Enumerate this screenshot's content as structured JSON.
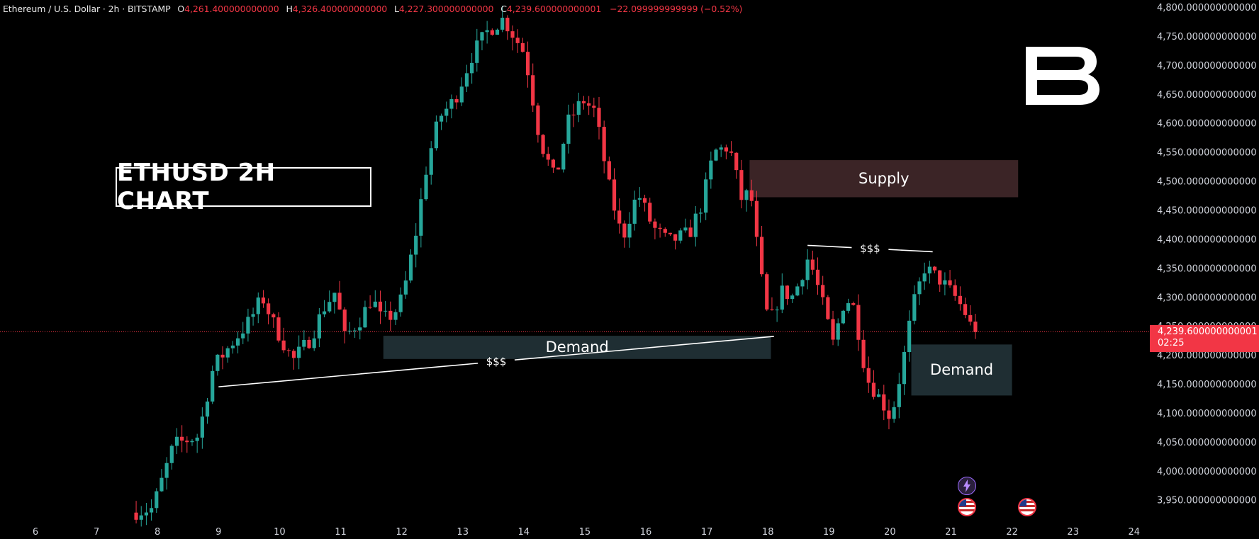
{
  "header": {
    "symbol": "Ethereum / U.S. Dollar · 2h · BITSTAMP",
    "open_label": "O",
    "open": "4,261.400000000000",
    "high_label": "H",
    "high": "4,326.400000000000",
    "low_label": "L",
    "low": "4,227.300000000000",
    "close_label": "C",
    "close": "4,239.600000000001",
    "change": "−22.099999999999 (−0.52%)"
  },
  "chart_title": "ETHUSD 2H CHART",
  "annotations": {
    "supply": "Supply",
    "demand_left": "Demand",
    "demand_right": "Demand",
    "liquidity_low": "$$$",
    "liquidity_high": "$$$"
  },
  "price_label": {
    "price": "4,239.600000000001",
    "countdown": "02:25"
  },
  "colors": {
    "up": "#26a69a",
    "down": "#f23645",
    "background": "#000000",
    "supply_zone": "#3b2426",
    "demand_zone": "#1f2e33"
  },
  "icons": [
    "flash-event-icon",
    "us-flag-icon",
    "us-flag-icon"
  ],
  "chart_data": {
    "type": "candlestick",
    "title": "ETHUSD 2H CHART",
    "ylim": [
      3910,
      4800
    ],
    "y_ticks": [
      "4,800.000000000000",
      "4,750.000000000000",
      "4,700.000000000000",
      "4,650.000000000000",
      "4,600.000000000000",
      "4,550.000000000000",
      "4,500.000000000000",
      "4,450.000000000000",
      "4,400.000000000000",
      "4,350.000000000000",
      "4,300.000000000000",
      "4,250.000000000000",
      "4,200.000000000000",
      "4,150.000000000000",
      "4,100.000000000000",
      "4,050.000000000000",
      "4,000.000000000000",
      "3,950.000000000000"
    ],
    "y_tick_values": [
      4800,
      4750,
      4700,
      4650,
      4600,
      4550,
      4500,
      4450,
      4400,
      4350,
      4300,
      4250,
      4200,
      4150,
      4100,
      4050,
      4000,
      3950
    ],
    "x_ticks": [
      "6",
      "7",
      "8",
      "9",
      "10",
      "11",
      "12",
      "13",
      "14",
      "15",
      "16",
      "17",
      "18",
      "19",
      "20",
      "21",
      "22",
      "23",
      "24"
    ],
    "x_range_days": [
      6,
      24
    ],
    "last_price": 4239.6,
    "zones": [
      {
        "name": "Supply",
        "day_start": 17.7,
        "day_end": 22.1,
        "price_low": 4472,
        "price_high": 4536
      },
      {
        "name": "Demand",
        "day_start": 11.7,
        "day_end": 18.05,
        "price_low": 4193,
        "price_high": 4233
      },
      {
        "name": "Demand",
        "day_start": 20.35,
        "day_end": 22.0,
        "price_low": 4130,
        "price_high": 4218
      }
    ],
    "lines": [
      {
        "label": "$$$",
        "from": [
          9.0,
          4145
        ],
        "to": [
          18.1,
          4232
        ]
      },
      {
        "label": "$$$",
        "from": [
          18.65,
          4389
        ],
        "to": [
          20.7,
          4378
        ]
      }
    ],
    "anchors": [
      [
        7.65,
        3928
      ],
      [
        8.0,
        3935
      ],
      [
        8.35,
        4045
      ],
      [
        8.75,
        4060
      ],
      [
        9.0,
        4180
      ],
      [
        9.3,
        4220
      ],
      [
        9.6,
        4260
      ],
      [
        9.8,
        4300
      ],
      [
        10.0,
        4250
      ],
      [
        10.3,
        4190
      ],
      [
        10.6,
        4230
      ],
      [
        10.8,
        4280
      ],
      [
        11.0,
        4310
      ],
      [
        11.15,
        4230
      ],
      [
        11.4,
        4260
      ],
      [
        11.6,
        4300
      ],
      [
        11.75,
        4260
      ],
      [
        11.95,
        4270
      ],
      [
        12.1,
        4300
      ],
      [
        12.3,
        4400
      ],
      [
        12.5,
        4530
      ],
      [
        12.7,
        4610
      ],
      [
        12.95,
        4640
      ],
      [
        13.25,
        4720
      ],
      [
        13.5,
        4760
      ],
      [
        13.75,
        4780
      ],
      [
        14.1,
        4720
      ],
      [
        14.35,
        4570
      ],
      [
        14.6,
        4500
      ],
      [
        14.8,
        4600
      ],
      [
        15.05,
        4640
      ],
      [
        15.25,
        4620
      ],
      [
        15.5,
        4480
      ],
      [
        15.7,
        4400
      ],
      [
        15.95,
        4480
      ],
      [
        16.2,
        4420
      ],
      [
        16.45,
        4395
      ],
      [
        16.8,
        4410
      ],
      [
        17.0,
        4460
      ],
      [
        17.2,
        4550
      ],
      [
        17.45,
        4560
      ],
      [
        17.65,
        4470
      ],
      [
        17.8,
        4480
      ],
      [
        17.95,
        4350
      ],
      [
        18.1,
        4250
      ],
      [
        18.3,
        4310
      ],
      [
        18.5,
        4300
      ],
      [
        18.75,
        4370
      ],
      [
        18.95,
        4300
      ],
      [
        19.15,
        4220
      ],
      [
        19.35,
        4300
      ],
      [
        19.5,
        4280
      ],
      [
        19.7,
        4160
      ],
      [
        19.95,
        4120
      ],
      [
        20.1,
        4090
      ],
      [
        20.3,
        4190
      ],
      [
        20.45,
        4280
      ],
      [
        20.65,
        4350
      ],
      [
        20.9,
        4330
      ],
      [
        21.15,
        4300
      ],
      [
        21.3,
        4276
      ],
      [
        21.45,
        4239.6
      ]
    ]
  }
}
